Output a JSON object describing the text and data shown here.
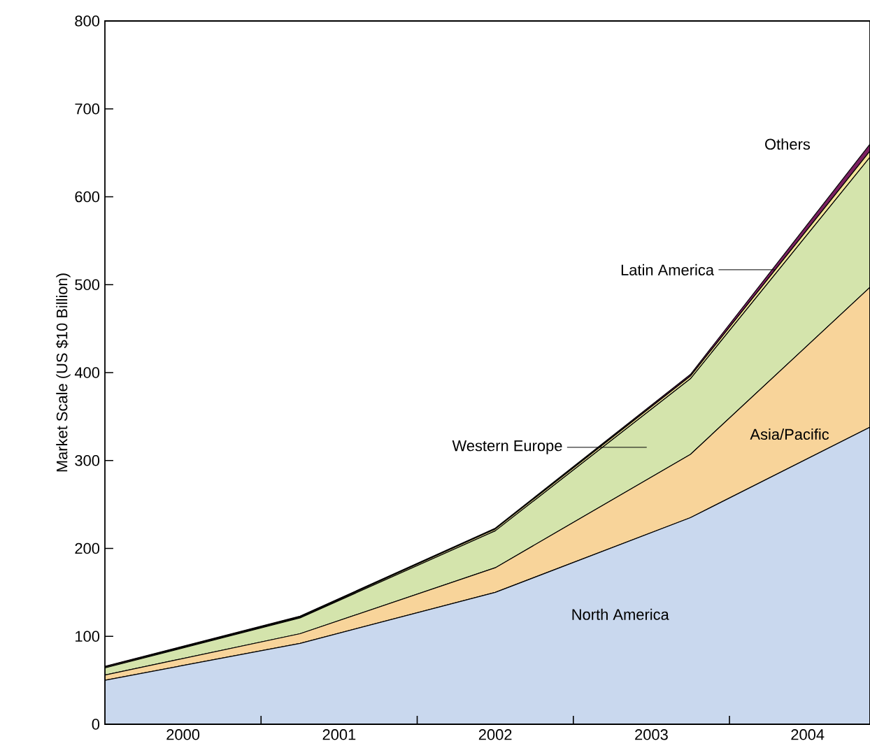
{
  "chart_data": {
    "type": "area",
    "stacked": true,
    "ylabel": "Market Scale (US $10 Billion)",
    "x": [
      1999.5,
      2000.75,
      2002,
      2003.25,
      2004.4
    ],
    "xlim": [
      1999.5,
      2004.4
    ],
    "xticks": [
      2000,
      {
        "value": 2000.5,
        "label": null
      },
      2001,
      {
        "value": 2001.5,
        "label": null
      },
      2002,
      {
        "value": 2002.5,
        "label": null
      },
      2003,
      {
        "value": 2003.5,
        "label": null
      },
      2004
    ],
    "ylim": [
      0,
      800
    ],
    "yticks": [
      0,
      100,
      200,
      300,
      400,
      500,
      600,
      700,
      800
    ],
    "series": [
      {
        "name": "North America",
        "color": "#c9d8ee",
        "values": [
          50,
          92,
          150,
          235,
          338
        ]
      },
      {
        "name": "Asia/Pacific",
        "color": "#f8d49a",
        "values": [
          6,
          11,
          28,
          72,
          159
        ]
      },
      {
        "name": "Western Europe",
        "color": "#d4e4ac",
        "values": [
          8,
          18,
          42,
          86,
          148
        ]
      },
      {
        "name": "Latin America",
        "color": "#f5e59a",
        "values": [
          1,
          1,
          2,
          3,
          7
        ]
      },
      {
        "name": "Others",
        "color": "#7a2060",
        "values": [
          1,
          1,
          1,
          2,
          8
        ]
      }
    ]
  }
}
